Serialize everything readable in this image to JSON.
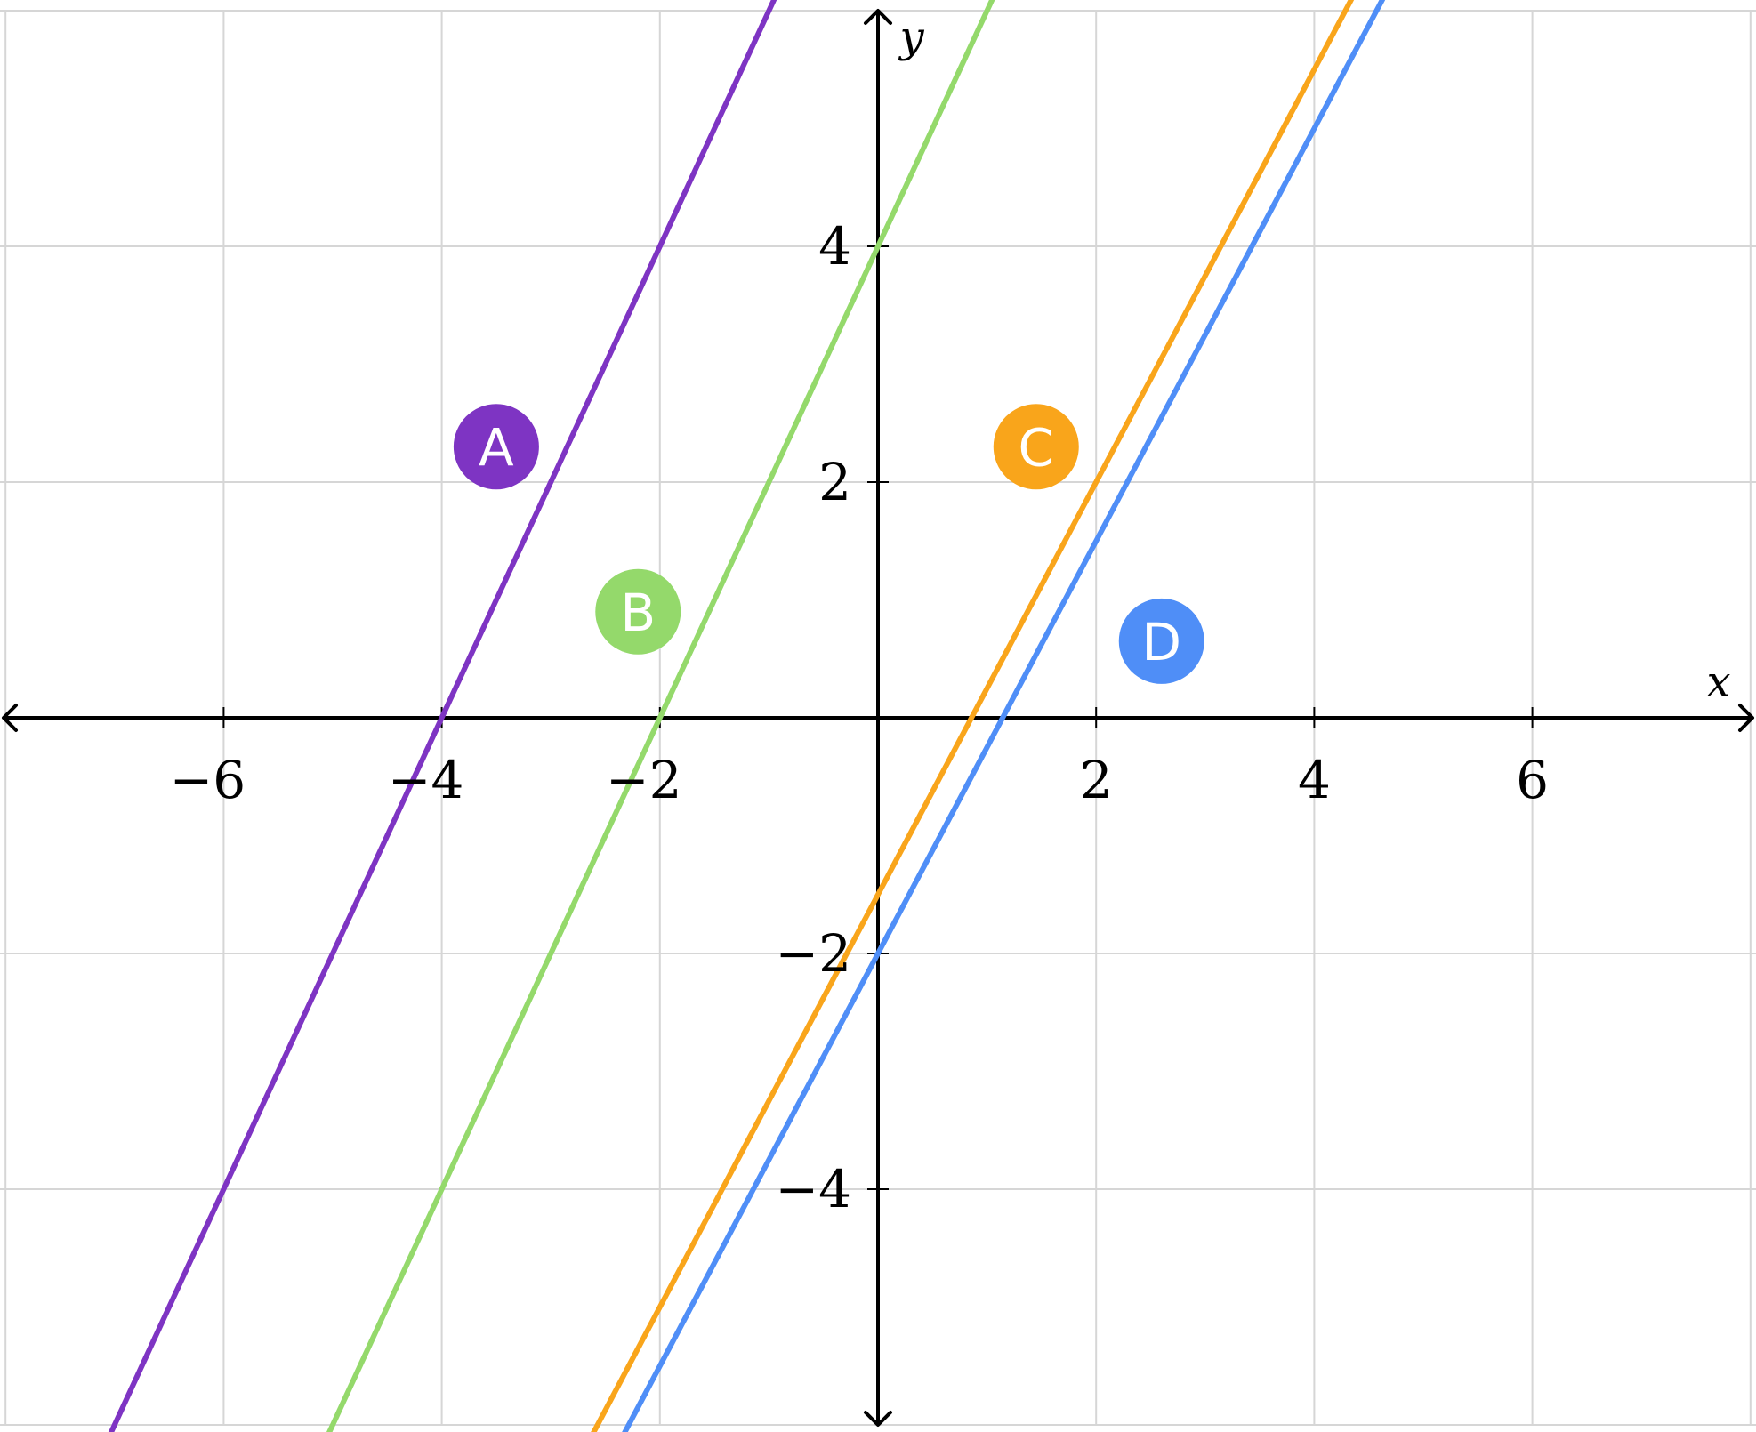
{
  "chart_data": {
    "type": "line",
    "xlabel": "x",
    "ylabel": "y",
    "xlim": [
      -8,
      8
    ],
    "ylim": [
      -6,
      6
    ],
    "grid": true,
    "x_ticks": [
      -6,
      -4,
      -2,
      2,
      4,
      6
    ],
    "y_ticks": [
      -4,
      -2,
      2,
      4
    ],
    "x_tick_labels": [
      "−6",
      "−4",
      "−2",
      "2",
      "4",
      "6"
    ],
    "y_tick_labels": [
      "−4",
      "−2",
      "2",
      "4"
    ],
    "series": [
      {
        "name": "A",
        "slope": 2,
        "intercept": 8,
        "color": "#7e34c3",
        "label_at": [
          -3.5,
          2.3
        ]
      },
      {
        "name": "B",
        "slope": 2,
        "intercept": 4,
        "color": "#94d96b",
        "label_at": [
          -2.2,
          0.9
        ]
      },
      {
        "name": "C",
        "slope": 1.75,
        "intercept": -1.5,
        "color": "#f9a51b",
        "label_at": [
          1.45,
          2.3
        ]
      },
      {
        "name": "D",
        "slope": 1.75,
        "intercept": -2,
        "color": "#4f8ef7",
        "label_at": [
          2.6,
          0.65
        ]
      }
    ]
  }
}
